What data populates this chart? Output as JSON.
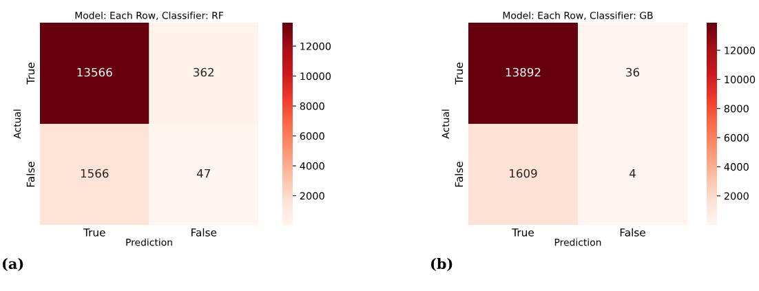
{
  "chart_data": [
    {
      "type": "heatmap",
      "title": "Model: Each Row, Classifier: RF",
      "xlabel": "Prediction",
      "ylabel": "Actual",
      "categories": [
        "True",
        "False"
      ],
      "y_categories": [
        "True",
        "False"
      ],
      "cells": [
        [
          13566,
          362
        ],
        [
          1566,
          47
        ]
      ],
      "data_labels": true,
      "clim": [
        47,
        13566
      ],
      "cticks": [
        2000,
        4000,
        6000,
        8000,
        10000,
        12000
      ],
      "annotations": [
        "(a)"
      ]
    },
    {
      "type": "heatmap",
      "title": "Model: Each Row, Classifier: GB",
      "xlabel": "Prediction",
      "ylabel": "Actual",
      "categories": [
        "True",
        "False"
      ],
      "y_categories": [
        "True",
        "False"
      ],
      "cells": [
        [
          13892,
          36
        ],
        [
          1609,
          4
        ]
      ],
      "data_labels": true,
      "clim": [
        4,
        13892
      ],
      "cticks": [
        2000,
        4000,
        6000,
        8000,
        10000,
        12000
      ],
      "annotations": [
        "(b)"
      ]
    }
  ]
}
